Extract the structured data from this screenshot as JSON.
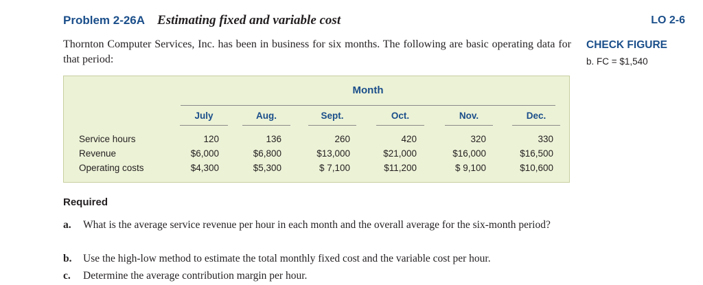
{
  "problem": {
    "number": "Problem 2-26A",
    "title": "Estimating fixed and variable cost",
    "lo": "LO 2-6"
  },
  "intro": "Thornton Computer Services, Inc. has been in business for six months. The following are basic operating data for that period:",
  "check_figure": {
    "title": "CHECK FIGURE",
    "value": "b. FC = $1,540"
  },
  "table": {
    "group_header": "Month",
    "columns": [
      "July",
      "Aug.",
      "Sept.",
      "Oct.",
      "Nov.",
      "Dec."
    ],
    "rows": [
      {
        "label": "Service hours",
        "values": [
          "120",
          "136",
          "260",
          "420",
          "320",
          "330"
        ]
      },
      {
        "label": "Revenue",
        "values": [
          "$6,000",
          "$6,800",
          "$13,000",
          "$21,000",
          "$16,000",
          "$16,500"
        ]
      },
      {
        "label": "Operating costs",
        "values": [
          "$4,300",
          "$5,300",
          "$ 7,100",
          "$11,200",
          "$ 9,100",
          "$10,600"
        ]
      }
    ]
  },
  "required": {
    "title": "Required",
    "questions": [
      {
        "letter": "a.",
        "text": "What is the average service revenue per hour in each month and the overall average for the six-month period?"
      },
      {
        "letter": "b.",
        "text": "Use the high-low method to estimate the total monthly fixed cost and the variable cost per hour."
      },
      {
        "letter": "c.",
        "text": "Determine the average contribution margin per hour."
      }
    ]
  },
  "colors": {
    "heading_blue": "#1a4e8a",
    "table_background": "#ecf2d6"
  }
}
